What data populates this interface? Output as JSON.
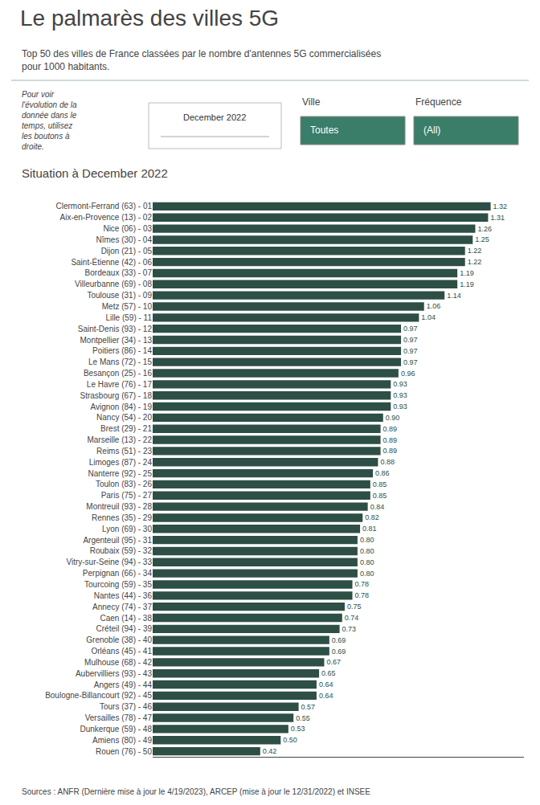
{
  "chart_data": {
    "type": "bar",
    "orientation": "horizontal",
    "title": "Le palmarès des villes 5G",
    "subtitle": "Top 50 des villes de France classées par le nombre d'antennes 5G commercialisées\npour 1000 habitants.",
    "annotations": [
      "Situation à December 2022",
      "Pour voir\nl'évolution de la\ndonnée dans le\ntemps, utilisez\nles boutons à\ndroite.",
      "December 2022",
      "Ville",
      "Toutes",
      "Fréquence",
      "(All)",
      "Sources : ANFR (Dernière mise à jour le 4/19/2023), ARCEP (mise à jour le 12/31/2022) et INSEE"
    ],
    "categories": [
      "Clermont-Ferrand (63) - 01",
      "Aix-en-Provence (13) - 02",
      "Nice (06) - 03",
      "Nîmes (30) - 04",
      "Dijon (21) - 05",
      "Saint-Étienne (42) - 06",
      "Bordeaux (33) - 07",
      "Villeurbanne (69) - 08",
      "Toulouse (31) - 09",
      "Metz (57) - 10",
      "Lille (59) - 11",
      "Saint-Denis (93) - 12",
      "Montpellier (34) - 13",
      "Poitiers (86) - 14",
      "Le Mans (72) - 15",
      "Besançon (25) - 16",
      "Le Havre (76) - 17",
      "Strasbourg (67) - 18",
      "Avignon (84) - 19",
      "Nancy (54) - 20",
      "Brest (29) - 21",
      "Marseille (13) - 22",
      "Reims (51) - 23",
      "Limoges (87) - 24",
      "Nanterre (92) - 25",
      "Toulon (83) - 26",
      "Paris (75) - 27",
      "Montreuil (93) - 28",
      "Rennes (35) - 29",
      "Lyon (69) - 30",
      "Argenteuil (95) - 31",
      "Roubaix (59) - 32",
      "Vitry-sur-Seine (94) - 33",
      "Perpignan (66) - 34",
      "Tourcoing (59) - 35",
      "Nantes (44) - 36",
      "Annecy (74) - 37",
      "Caen (14) - 38",
      "Créteil (94) - 39",
      "Grenoble (38) - 40",
      "Orléans (45) - 41",
      "Mulhouse (68) - 42",
      "Aubervilliers (93) - 43",
      "Angers (49) - 44",
      "Boulogne-Billancourt (92) - 45",
      "Tours (37) - 46",
      "Versailles (78) - 47",
      "Dunkerque (59) - 48",
      "Amiens (80) - 49",
      "Rouen (76) - 50"
    ],
    "values": [
      1.32,
      1.31,
      1.26,
      1.25,
      1.22,
      1.22,
      1.19,
      1.19,
      1.14,
      1.06,
      1.04,
      0.97,
      0.97,
      0.97,
      0.97,
      0.96,
      0.93,
      0.93,
      0.93,
      0.9,
      0.89,
      0.89,
      0.89,
      0.88,
      0.86,
      0.85,
      0.85,
      0.84,
      0.82,
      0.81,
      0.8,
      0.8,
      0.8,
      0.8,
      0.78,
      0.78,
      0.75,
      0.74,
      0.73,
      0.69,
      0.69,
      0.67,
      0.65,
      0.64,
      0.64,
      0.57,
      0.55,
      0.53,
      0.5,
      0.42
    ],
    "value_labels": [
      "1.32",
      "1.31",
      "1.26",
      "1.25",
      "1.22",
      "1.22",
      "1.19",
      "1.19",
      "1.14",
      "1.06",
      "1.04",
      "0.97",
      "0.97",
      "0.97",
      "0.97",
      "0.96",
      "0.93",
      "0.93",
      "0.93",
      "0.90",
      "0.89",
      "0.89",
      "0.89",
      "0.88",
      "0.86",
      "0.85",
      "0.85",
      "0.84",
      "0.82",
      "0.81",
      "0.80",
      "0.80",
      "0.80",
      "0.80",
      "0.78",
      "0.78",
      "0.75",
      "0.74",
      "0.73",
      "0.69",
      "0.69",
      "0.67",
      "0.65",
      "0.64",
      "0.64",
      "0.57",
      "0.55",
      "0.53",
      "0.50",
      "0.42"
    ],
    "data_labels": true,
    "color": "#2d4f45",
    "xlim": [
      0,
      1.45
    ],
    "xticks": [],
    "tick_labels": "y",
    "grid": false
  }
}
